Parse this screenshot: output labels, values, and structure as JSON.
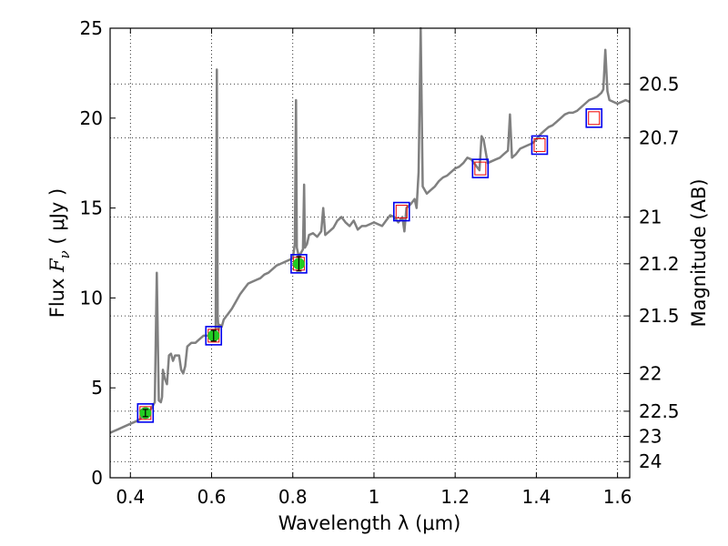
{
  "chart_data": {
    "type": "line",
    "title": "",
    "xlabel": "Wavelength  λ (μm)",
    "ylabel": "Flux  F_ν  ( μJy )",
    "ylabel_parts": {
      "pre": "Flux  ",
      "sym": "F",
      "sub": "ν",
      "post": "  ( μJy )"
    },
    "y2label": "Magnitude (AB)",
    "xlim": [
      0.35,
      1.63
    ],
    "ylim": [
      0,
      25
    ],
    "grid": true,
    "colors": {
      "spectrum": "#808080",
      "photometry": "#22cc22",
      "model_box": "#0000ee",
      "model_inner": "#ee0000",
      "errorbar": "#000000"
    },
    "x_ticks": [
      {
        "v": 0.4,
        "label": "0.4"
      },
      {
        "v": 0.6,
        "label": "0.6"
      },
      {
        "v": 0.8,
        "label": "0.8"
      },
      {
        "v": 1.0,
        "label": "1"
      },
      {
        "v": 1.2,
        "label": "1.2"
      },
      {
        "v": 1.4,
        "label": "1.4"
      },
      {
        "v": 1.6,
        "label": "1.6"
      }
    ],
    "y_ticks": [
      {
        "v": 0,
        "label": "0"
      },
      {
        "v": 5,
        "label": "5"
      },
      {
        "v": 10,
        "label": "10"
      },
      {
        "v": 15,
        "label": "15"
      },
      {
        "v": 20,
        "label": "20"
      },
      {
        "v": 25,
        "label": "25"
      }
    ],
    "y2_ticks": [
      {
        "flux": 21.9,
        "label": "20.5"
      },
      {
        "flux": 18.9,
        "label": "20.7"
      },
      {
        "flux": 14.5,
        "label": "21"
      },
      {
        "flux": 11.9,
        "label": "21.2"
      },
      {
        "flux": 9.0,
        "label": "21.5"
      },
      {
        "flux": 5.8,
        "label": "22"
      },
      {
        "flux": 3.7,
        "label": "22.5"
      },
      {
        "flux": 2.3,
        "label": "23"
      },
      {
        "flux": 0.9,
        "label": "24"
      }
    ],
    "series": [
      {
        "name": "spectrum",
        "x": [
          0.35,
          0.38,
          0.4,
          0.42,
          0.44,
          0.45,
          0.455,
          0.46,
          0.465,
          0.47,
          0.475,
          0.478,
          0.48,
          0.485,
          0.49,
          0.495,
          0.5,
          0.505,
          0.51,
          0.52,
          0.525,
          0.53,
          0.535,
          0.54,
          0.55,
          0.56,
          0.57,
          0.58,
          0.59,
          0.6,
          0.605,
          0.61,
          0.613,
          0.615,
          0.617,
          0.62,
          0.625,
          0.63,
          0.64,
          0.65,
          0.66,
          0.67,
          0.68,
          0.69,
          0.7,
          0.71,
          0.72,
          0.73,
          0.74,
          0.75,
          0.76,
          0.77,
          0.78,
          0.79,
          0.8,
          0.805,
          0.808,
          0.81,
          0.815,
          0.82,
          0.825,
          0.828,
          0.83,
          0.835,
          0.84,
          0.85,
          0.86,
          0.87,
          0.875,
          0.88,
          0.89,
          0.9,
          0.91,
          0.92,
          0.93,
          0.94,
          0.95,
          0.96,
          0.97,
          0.98,
          0.99,
          1.0,
          1.01,
          1.02,
          1.03,
          1.04,
          1.05,
          1.06,
          1.07,
          1.075,
          1.08,
          1.09,
          1.1,
          1.105,
          1.11,
          1.115,
          1.12,
          1.13,
          1.14,
          1.15,
          1.16,
          1.17,
          1.18,
          1.19,
          1.2,
          1.21,
          1.22,
          1.23,
          1.24,
          1.25,
          1.26,
          1.265,
          1.27,
          1.28,
          1.29,
          1.3,
          1.31,
          1.32,
          1.33,
          1.335,
          1.34,
          1.35,
          1.36,
          1.37,
          1.38,
          1.39,
          1.4,
          1.41,
          1.42,
          1.43,
          1.44,
          1.45,
          1.46,
          1.47,
          1.48,
          1.49,
          1.5,
          1.51,
          1.52,
          1.53,
          1.54,
          1.55,
          1.56,
          1.565,
          1.57,
          1.575,
          1.58,
          1.59,
          1.6,
          1.61,
          1.62,
          1.63
        ],
        "y": [
          2.5,
          2.8,
          3.0,
          3.2,
          3.6,
          3.8,
          4.0,
          4.2,
          11.4,
          4.3,
          4.2,
          4.5,
          6.0,
          5.5,
          5.2,
          6.8,
          6.9,
          6.5,
          6.8,
          6.8,
          6.0,
          5.8,
          6.2,
          7.3,
          7.5,
          7.5,
          7.7,
          7.9,
          7.9,
          8.0,
          8.1,
          8.2,
          22.7,
          9.0,
          8.2,
          8.5,
          8.4,
          8.8,
          9.1,
          9.4,
          9.8,
          10.2,
          10.5,
          10.8,
          10.9,
          11.0,
          11.1,
          11.3,
          11.4,
          11.6,
          11.8,
          11.9,
          12.0,
          12.1,
          12.2,
          13.0,
          21.0,
          12.8,
          12.3,
          12.5,
          12.7,
          16.3,
          12.8,
          13.0,
          13.5,
          13.6,
          13.4,
          13.7,
          15.0,
          13.5,
          13.7,
          13.9,
          14.3,
          14.5,
          14.2,
          14.0,
          14.3,
          13.8,
          14.0,
          14.0,
          14.1,
          14.2,
          14.1,
          14.0,
          14.3,
          14.6,
          14.5,
          14.2,
          14.5,
          13.7,
          15.0,
          15.2,
          15.5,
          15.0,
          17.0,
          25.0,
          16.2,
          15.8,
          16.0,
          16.2,
          16.5,
          16.7,
          16.8,
          17.0,
          17.2,
          17.3,
          17.5,
          17.8,
          17.7,
          17.4,
          17.1,
          19.0,
          18.8,
          17.5,
          17.6,
          17.7,
          17.8,
          18.0,
          18.2,
          20.2,
          17.8,
          18.0,
          18.3,
          18.4,
          18.5,
          18.6,
          18.8,
          19.1,
          19.3,
          19.5,
          19.6,
          19.8,
          20.0,
          20.2,
          20.3,
          20.3,
          20.4,
          20.6,
          20.8,
          21.0,
          21.1,
          21.2,
          21.4,
          21.6,
          23.8,
          21.5,
          21.0,
          20.9,
          20.8,
          20.9,
          21.0,
          20.9
        ]
      },
      {
        "name": "photometry",
        "x": [
          0.437,
          0.605,
          0.815
        ],
        "y": [
          3.6,
          7.9,
          11.9
        ],
        "err": [
          0.2,
          0.3,
          0.4
        ]
      },
      {
        "name": "model",
        "x": [
          0.437,
          0.605,
          0.815,
          1.068,
          1.262,
          1.408,
          1.542
        ],
        "y": [
          3.6,
          7.9,
          11.9,
          14.8,
          17.2,
          18.5,
          20.0
        ]
      }
    ]
  }
}
